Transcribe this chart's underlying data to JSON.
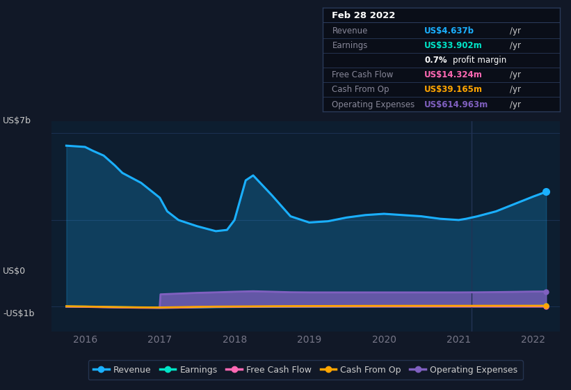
{
  "background_color": "#111827",
  "plot_bg_color": "#0d1e30",
  "plot_bg_color2": "#0a1520",
  "grid_color": "#1a3050",
  "axis_label_color": "#cccccc",
  "tick_color": "#777788",
  "ylim": [
    -1000000000.0,
    7500000000.0
  ],
  "xlim_start": 2015.55,
  "xlim_end": 2022.35,
  "xticks": [
    2016,
    2017,
    2018,
    2019,
    2020,
    2021,
    2022
  ],
  "vline_x": 2021.17,
  "series_colors": {
    "Revenue": "#1ab0ff",
    "Earnings": "#00e5c8",
    "FreeCashFlow": "#ff69b4",
    "CashFromOp": "#ffa500",
    "OperatingExpenses": "#8060c0"
  },
  "legend_entries": [
    {
      "label": "Revenue",
      "color": "#1ab0ff"
    },
    {
      "label": "Earnings",
      "color": "#00e5c8"
    },
    {
      "label": "Free Cash Flow",
      "color": "#ff69b4"
    },
    {
      "label": "Cash From Op",
      "color": "#ffa500"
    },
    {
      "label": "Operating Expenses",
      "color": "#8060c0"
    }
  ],
  "revenue_x": [
    2015.75,
    2016.0,
    2016.1,
    2016.25,
    2016.4,
    2016.5,
    2016.75,
    2017.0,
    2017.1,
    2017.25,
    2017.5,
    2017.75,
    2017.9,
    2018.0,
    2018.15,
    2018.25,
    2018.5,
    2018.75,
    2019.0,
    2019.25,
    2019.5,
    2019.75,
    2020.0,
    2020.25,
    2020.5,
    2020.75,
    2021.0,
    2021.1,
    2021.25,
    2021.5,
    2021.75,
    2022.0,
    2022.17
  ],
  "revenue_y": [
    6500000000.0,
    6450000000.0,
    6300000000.0,
    6100000000.0,
    5700000000.0,
    5400000000.0,
    5000000000.0,
    4400000000.0,
    3850000000.0,
    3500000000.0,
    3250000000.0,
    3050000000.0,
    3100000000.0,
    3500000000.0,
    5100000000.0,
    5300000000.0,
    4500000000.0,
    3650000000.0,
    3400000000.0,
    3450000000.0,
    3600000000.0,
    3700000000.0,
    3750000000.0,
    3700000000.0,
    3650000000.0,
    3550000000.0,
    3500000000.0,
    3550000000.0,
    3650000000.0,
    3850000000.0,
    4150000000.0,
    4450000000.0,
    4637000000.0
  ],
  "earnings_x": [
    2015.75,
    2016.0,
    2016.25,
    2016.5,
    2016.75,
    2017.0,
    2017.25,
    2017.5,
    2017.75,
    2018.0,
    2018.25,
    2018.5,
    2018.75,
    2019.0,
    2019.25,
    2019.5,
    2019.75,
    2020.0,
    2020.25,
    2020.5,
    2020.75,
    2021.0,
    2021.25,
    2021.5,
    2021.75,
    2022.0,
    2022.17
  ],
  "earnings_y": [
    10000000.0,
    5000000.0,
    -10000000.0,
    -20000000.0,
    -30000000.0,
    -40000000.0,
    -35000000.0,
    -25000000.0,
    -15000000.0,
    -10000000.0,
    -5000000.0,
    5000000.0,
    10000000.0,
    12000000.0,
    14000000.0,
    16000000.0,
    18000000.0,
    20000000.0,
    20000000.0,
    20000000.0,
    22000000.0,
    23000000.0,
    24000000.0,
    28000000.0,
    30000000.0,
    32000000.0,
    33902000.0
  ],
  "fcf_x": [
    2015.75,
    2016.0,
    2016.25,
    2016.5,
    2016.75,
    2017.0,
    2017.25,
    2017.5,
    2017.75,
    2018.0,
    2018.25,
    2018.5,
    2018.75,
    2019.0,
    2019.25,
    2019.5,
    2019.75,
    2020.0,
    2020.25,
    2020.5,
    2020.75,
    2021.0,
    2021.25,
    2021.5,
    2021.75,
    2022.0,
    2022.17
  ],
  "fcf_y": [
    5000000.0,
    -2000000.0,
    -18000000.0,
    -30000000.0,
    -40000000.0,
    -45000000.0,
    -35000000.0,
    -20000000.0,
    -8000000.0,
    -5000000.0,
    2000000.0,
    6000000.0,
    8000000.0,
    10000000.0,
    12000000.0,
    14000000.0,
    15000000.0,
    16000000.0,
    16000000.0,
    16000000.0,
    16000000.0,
    16000000.0,
    16000000.0,
    15000000.0,
    15000000.0,
    14000000.0,
    14324000.0
  ],
  "cashop_x": [
    2015.75,
    2016.0,
    2016.25,
    2016.5,
    2016.75,
    2017.0,
    2017.25,
    2017.5,
    2017.75,
    2018.0,
    2018.25,
    2018.5,
    2018.75,
    2019.0,
    2019.25,
    2019.5,
    2019.75,
    2020.0,
    2020.25,
    2020.5,
    2020.75,
    2021.0,
    2021.25,
    2021.5,
    2021.75,
    2022.0,
    2022.17
  ],
  "cashop_y": [
    20000000.0,
    10000000.0,
    -5000000.0,
    -15000000.0,
    -25000000.0,
    -30000000.0,
    -18000000.0,
    -5000000.0,
    5000000.0,
    10000000.0,
    15000000.0,
    20000000.0,
    25000000.0,
    28000000.0,
    30000000.0,
    32000000.0,
    34000000.0,
    35000000.0,
    36000000.0,
    37000000.0,
    37000000.0,
    37000000.0,
    38000000.0,
    39000000.0,
    39000000.0,
    39000000.0,
    39165000.0
  ],
  "opex_x": [
    2017.0,
    2017.01,
    2017.25,
    2017.5,
    2017.75,
    2018.0,
    2018.25,
    2018.5,
    2018.75,
    2019.0,
    2019.25,
    2019.5,
    2019.75,
    2020.0,
    2020.25,
    2020.5,
    2020.75,
    2021.0,
    2021.25,
    2021.5,
    2021.75,
    2022.0,
    2022.17
  ],
  "opex_y": [
    0.0,
    500000000.0,
    530000000.0,
    560000000.0,
    580000000.0,
    605000000.0,
    625000000.0,
    605000000.0,
    585000000.0,
    578000000.0,
    578000000.0,
    578000000.0,
    578000000.0,
    578000000.0,
    578000000.0,
    578000000.0,
    578000000.0,
    578000000.0,
    582000000.0,
    590000000.0,
    600000000.0,
    612000000.0,
    614963000.0
  ]
}
